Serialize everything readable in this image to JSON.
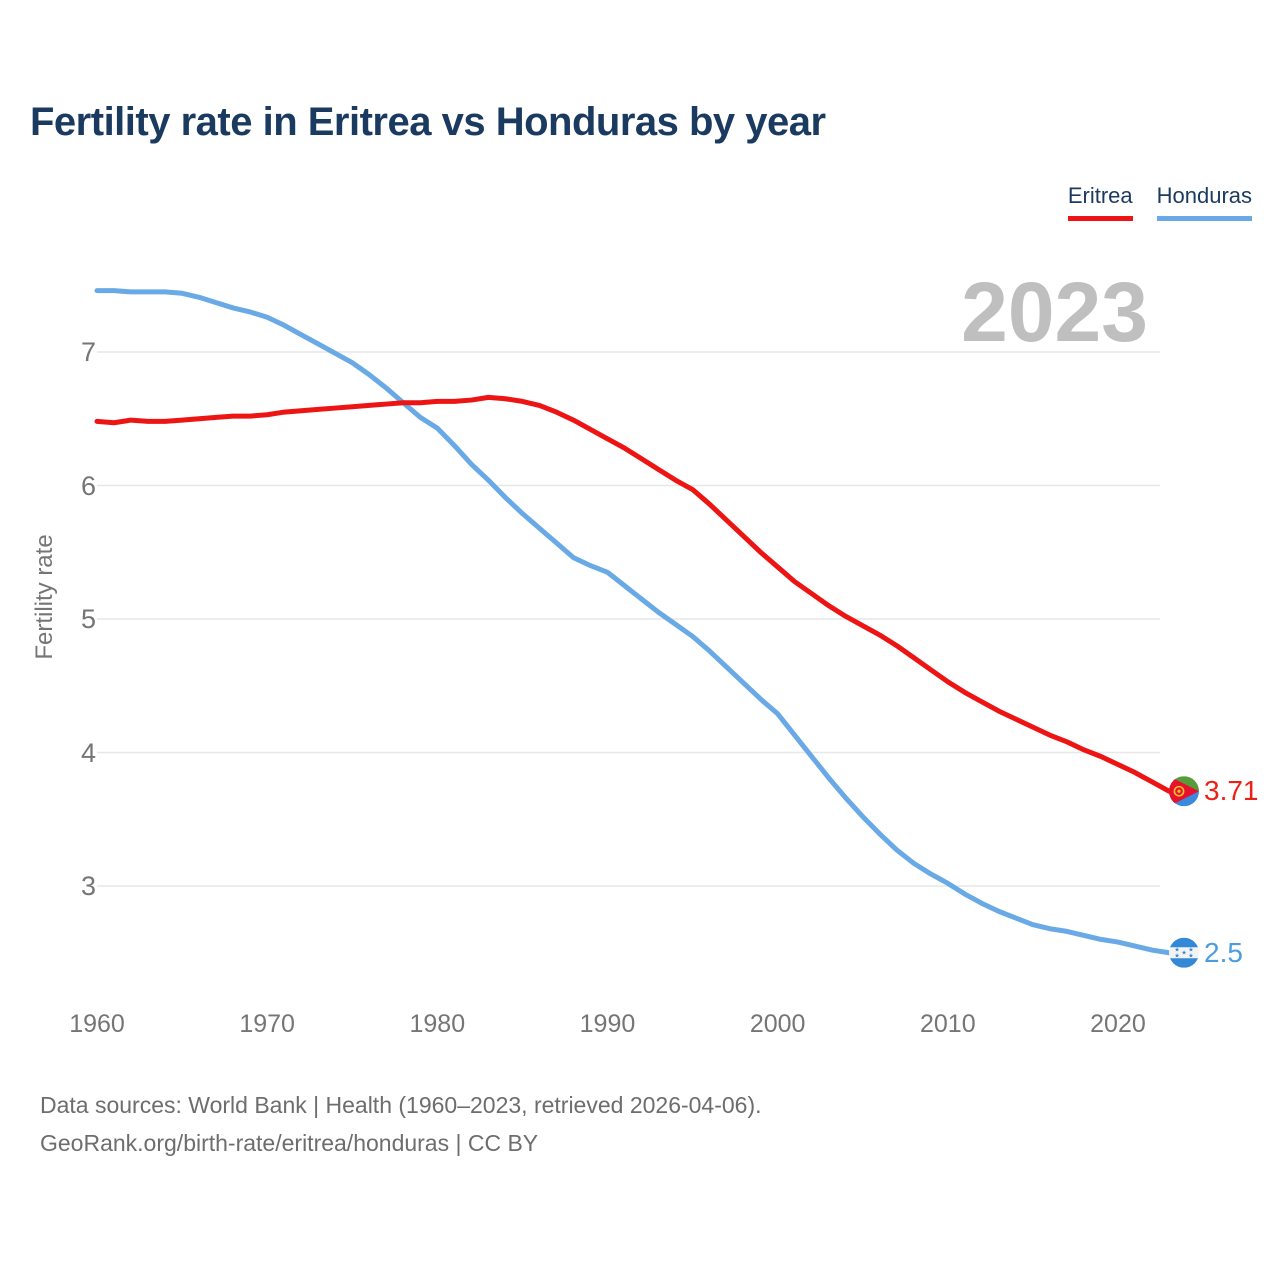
{
  "header": {
    "title": "Fertility rate in Eritrea vs Honduras by year"
  },
  "legend": {
    "items": [
      {
        "label": "Eritrea"
      },
      {
        "label": "Honduras"
      }
    ]
  },
  "watermark": "2023",
  "chart_data": {
    "type": "line",
    "title": "Fertility rate in Eritrea vs Honduras by year",
    "xlabel": "",
    "ylabel": "Fertility rate",
    "xlim": [
      1960,
      2023
    ],
    "ylim": [
      2.3,
      7.6
    ],
    "x_ticks": [
      1960,
      1970,
      1980,
      1990,
      2000,
      2010,
      2020
    ],
    "y_ticks": [
      7,
      6,
      5,
      4,
      3
    ],
    "grid": "horizontal",
    "legend_position": "top-right",
    "series": [
      {
        "name": "Eritrea",
        "color": "#ed1414",
        "end_label": "3.71",
        "end_year": 2023,
        "x": [
          1960,
          1961,
          1962,
          1963,
          1964,
          1965,
          1966,
          1967,
          1968,
          1969,
          1970,
          1971,
          1972,
          1973,
          1974,
          1975,
          1976,
          1977,
          1978,
          1979,
          1980,
          1981,
          1982,
          1983,
          1984,
          1985,
          1986,
          1987,
          1988,
          1989,
          1990,
          1991,
          1992,
          1993,
          1994,
          1995,
          1996,
          1997,
          1998,
          1999,
          2000,
          2001,
          2002,
          2003,
          2004,
          2005,
          2006,
          2007,
          2008,
          2009,
          2010,
          2011,
          2012,
          2013,
          2014,
          2015,
          2016,
          2017,
          2018,
          2019,
          2020,
          2021,
          2022,
          2023
        ],
        "values": [
          6.48,
          6.47,
          6.49,
          6.48,
          6.48,
          6.49,
          6.5,
          6.51,
          6.52,
          6.52,
          6.53,
          6.55,
          6.56,
          6.57,
          6.58,
          6.59,
          6.6,
          6.61,
          6.62,
          6.62,
          6.63,
          6.63,
          6.64,
          6.66,
          6.65,
          6.63,
          6.6,
          6.55,
          6.49,
          6.42,
          6.35,
          6.28,
          6.2,
          6.12,
          6.04,
          5.97,
          5.86,
          5.74,
          5.62,
          5.5,
          5.39,
          5.28,
          5.19,
          5.1,
          5.02,
          4.95,
          4.88,
          4.8,
          4.71,
          4.62,
          4.53,
          4.45,
          4.38,
          4.31,
          4.25,
          4.19,
          4.13,
          4.08,
          4.02,
          3.97,
          3.91,
          3.85,
          3.78,
          3.71
        ]
      },
      {
        "name": "Honduras",
        "color": "#69aae6",
        "end_label": "2.5",
        "end_year": 2023,
        "x": [
          1960,
          1961,
          1962,
          1963,
          1964,
          1965,
          1966,
          1967,
          1968,
          1969,
          1970,
          1971,
          1972,
          1973,
          1974,
          1975,
          1976,
          1977,
          1978,
          1979,
          1980,
          1981,
          1982,
          1983,
          1984,
          1985,
          1986,
          1987,
          1988,
          1989,
          1990,
          1991,
          1992,
          1993,
          1994,
          1995,
          1996,
          1997,
          1998,
          1999,
          2000,
          2001,
          2002,
          2003,
          2004,
          2005,
          2006,
          2007,
          2008,
          2009,
          2010,
          2011,
          2012,
          2013,
          2014,
          2015,
          2016,
          2017,
          2018,
          2019,
          2020,
          2021,
          2022,
          2023
        ],
        "values": [
          7.46,
          7.46,
          7.45,
          7.45,
          7.45,
          7.44,
          7.41,
          7.37,
          7.33,
          7.3,
          7.26,
          7.2,
          7.13,
          7.06,
          6.99,
          6.92,
          6.83,
          6.73,
          6.62,
          6.51,
          6.43,
          6.3,
          6.16,
          6.04,
          5.91,
          5.79,
          5.68,
          5.57,
          5.46,
          5.4,
          5.35,
          5.25,
          5.15,
          5.05,
          4.96,
          4.87,
          4.76,
          4.64,
          4.52,
          4.4,
          4.29,
          4.13,
          3.97,
          3.81,
          3.66,
          3.52,
          3.39,
          3.27,
          3.17,
          3.09,
          3.02,
          2.94,
          2.87,
          2.81,
          2.76,
          2.71,
          2.68,
          2.66,
          2.63,
          2.6,
          2.58,
          2.55,
          2.52,
          2.5
        ]
      }
    ]
  },
  "colors": {
    "title_text": "#1b3a5f",
    "axis_text": "#757575",
    "gridline": "#e7e7e7",
    "watermark": "#bfbfbf",
    "footer_text": "#6d6d6d",
    "eritrea_red": "#ed1414",
    "honduras_blue": "#69aae6"
  },
  "footer": {
    "line1": "Data sources: World Bank | Health (1960–2023, retrieved 2026-04-06).",
    "line2": "GeoRank.org/birth-rate/eritrea/honduras | CC BY"
  }
}
